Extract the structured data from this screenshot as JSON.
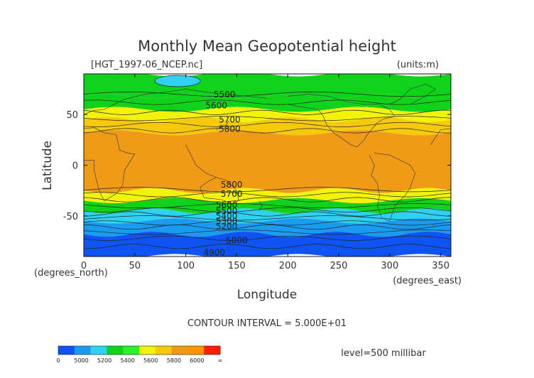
{
  "title": "Monthly Mean Geopotential height",
  "file_label": "[HGT_1997-06_NCEP.nc]",
  "units_label": "(units:m)",
  "y_axis": {
    "title": "Latitude",
    "unit_label": "(degrees_north)",
    "ticks": [
      {
        "value": 50,
        "label": "50"
      },
      {
        "value": 0,
        "label": "0"
      },
      {
        "value": -50,
        "label": "-50"
      }
    ],
    "range": [
      -90,
      90
    ]
  },
  "x_axis": {
    "title": "Longitude",
    "unit_label": "(degrees_east)",
    "ticks": [
      {
        "value": 0,
        "label": "0"
      },
      {
        "value": 50,
        "label": "50"
      },
      {
        "value": 100,
        "label": "100"
      },
      {
        "value": 150,
        "label": "150"
      },
      {
        "value": 200,
        "label": "200"
      },
      {
        "value": 250,
        "label": "250"
      },
      {
        "value": 300,
        "label": "300"
      },
      {
        "value": 350,
        "label": "350"
      }
    ],
    "range": [
      0,
      360
    ]
  },
  "contour_labels": [
    {
      "text": "5500",
      "lon": 138,
      "lat": 67
    },
    {
      "text": "5600",
      "lon": 130,
      "lat": 56
    },
    {
      "text": "5700",
      "lon": 143,
      "lat": 42
    },
    {
      "text": "5800",
      "lon": 143,
      "lat": 33
    },
    {
      "text": "5800",
      "lon": 145,
      "lat": -22
    },
    {
      "text": "5700",
      "lon": 145,
      "lat": -31
    },
    {
      "text": "5600",
      "lon": 140,
      "lat": -42
    },
    {
      "text": "5500",
      "lon": 140,
      "lat": -48
    },
    {
      "text": "5400",
      "lon": 140,
      "lat": -53
    },
    {
      "text": "5300",
      "lon": 140,
      "lat": -58
    },
    {
      "text": "5200",
      "lon": 140,
      "lat": -63
    },
    {
      "text": "5000",
      "lon": 150,
      "lat": -77
    },
    {
      "text": "4900",
      "lon": 128,
      "lat": -89
    }
  ],
  "contour_interval": "CONTOUR INTERVAL = 5.000E+01",
  "level": "level=500 millibar",
  "colorbar": {
    "colors": [
      "#0f54f2",
      "#1b9bf0",
      "#2fd1f0",
      "#10d21a",
      "#2cf02c",
      "#f2f20b",
      "#f5ca0c",
      "#f09b18",
      "#ff9400",
      "#ff1c00"
    ],
    "labels": [
      "0",
      "5000",
      "5200",
      "5400",
      "5600",
      "5800",
      "6000",
      "∞"
    ]
  },
  "chart_data": {
    "type": "heatmap",
    "title": "Monthly Mean Geopotential height",
    "xlabel": "Longitude",
    "ylabel": "Latitude",
    "xlim": [
      0,
      360
    ],
    "ylim": [
      -90,
      90
    ],
    "units": "m",
    "level": "500 millibar",
    "contour_interval": 50,
    "bands": [
      {
        "lat_range": [
          68,
          90
        ],
        "value_range": [
          5400,
          5500
        ],
        "color": "#10d21a"
      },
      {
        "lat_range": [
          55,
          68
        ],
        "value_range": [
          5500,
          5600
        ],
        "color": "#10d21a"
      },
      {
        "lat_range": [
          45,
          55
        ],
        "value_range": [
          5600,
          5700
        ],
        "color": "#f2f20b"
      },
      {
        "lat_range": [
          32,
          45
        ],
        "value_range": [
          5700,
          5800
        ],
        "color": "#f5ca0c"
      },
      {
        "lat_range": [
          -25,
          32
        ],
        "value_range": [
          5800,
          5900
        ],
        "color": "#f09b18"
      },
      {
        "lat_range": [
          -35,
          -25
        ],
        "value_range": [
          5700,
          5800
        ],
        "color": "#f2f20b"
      },
      {
        "lat_range": [
          -45,
          -35
        ],
        "value_range": [
          5600,
          5700
        ],
        "color": "#10d21a"
      },
      {
        "lat_range": [
          -55,
          -45
        ],
        "value_range": [
          5400,
          5600
        ],
        "color": "#2fd1f0"
      },
      {
        "lat_range": [
          -68,
          -55
        ],
        "value_range": [
          5200,
          5400
        ],
        "color": "#1b9bf0"
      },
      {
        "lat_range": [
          -90,
          -68
        ],
        "value_range": [
          4900,
          5200
        ],
        "color": "#0f54f2"
      }
    ]
  }
}
